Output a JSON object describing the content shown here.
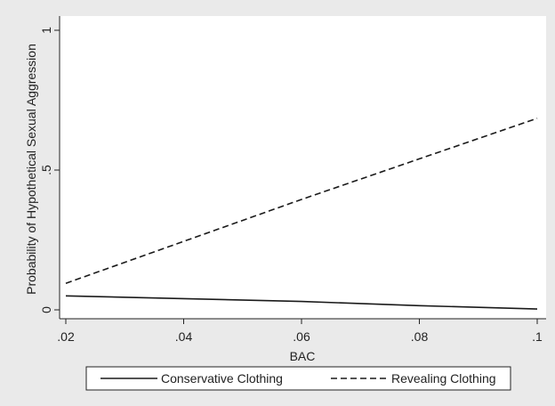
{
  "chart_data": {
    "type": "line",
    "title": "",
    "xlabel": "BAC",
    "ylabel": "Probability of Hypothetical Sexual Aggression",
    "xlim": [
      0.02,
      0.1
    ],
    "ylim": [
      0,
      1
    ],
    "x_ticks": [
      0.02,
      0.04,
      0.06,
      0.08,
      0.1
    ],
    "x_tick_labels": [
      ".02",
      ".04",
      ".06",
      ".08",
      ".1"
    ],
    "y_ticks": [
      0,
      0.5,
      1
    ],
    "y_tick_labels": [
      "0",
      ".5",
      "1"
    ],
    "grid": false,
    "legend_position": "bottom",
    "series": [
      {
        "name": "Conservative Clothing",
        "style": "solid",
        "color": "#1a1a1a",
        "x": [
          0.02,
          0.04,
          0.06,
          0.08,
          0.1
        ],
        "values": [
          0.05,
          0.04,
          0.03,
          0.015,
          0.003
        ]
      },
      {
        "name": "Revealing Clothing",
        "style": "dashed",
        "color": "#1a1a1a",
        "x": [
          0.02,
          0.04,
          0.06,
          0.08,
          0.1
        ],
        "values": [
          0.095,
          0.245,
          0.395,
          0.54,
          0.685
        ]
      }
    ]
  }
}
